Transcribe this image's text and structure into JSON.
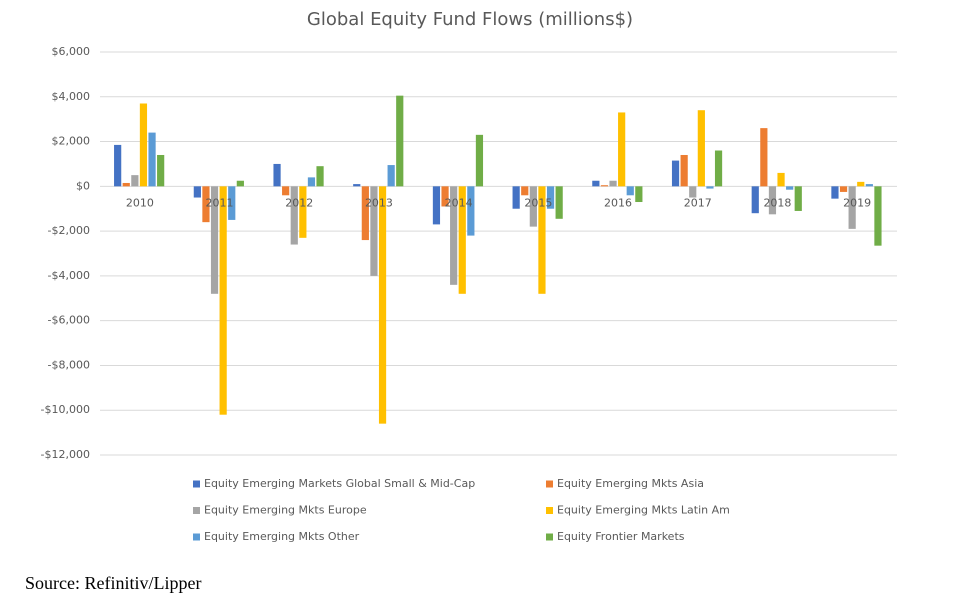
{
  "chart_data": {
    "type": "bar",
    "title": "Global Equity Fund Flows (millions$)",
    "source": "Source: Refinitiv/Lipper",
    "categories": [
      "2010",
      "2011",
      "2012",
      "2013",
      "2014",
      "2015",
      "2016",
      "2017",
      "2018",
      "2019"
    ],
    "series": [
      {
        "name": "Equity Emerging Markets Global Small & Mid-Cap",
        "color": "#4472c4",
        "values": [
          1850,
          -500,
          1000,
          100,
          -1700,
          -1000,
          250,
          1150,
          -1200,
          -550
        ]
      },
      {
        "name": "Equity Emerging Mkts Asia",
        "color": "#ed7d31",
        "values": [
          150,
          -1600,
          -400,
          -2400,
          -900,
          -400,
          50,
          1400,
          2600,
          -250
        ]
      },
      {
        "name": "Equity Emerging Mkts Europe",
        "color": "#a5a5a5",
        "values": [
          500,
          -4800,
          -2600,
          -4000,
          -4400,
          -1800,
          250,
          -500,
          -1250,
          -1900
        ]
      },
      {
        "name": "Equity Emerging Mkts Latin Am",
        "color": "#ffc000",
        "values": [
          3700,
          -10200,
          -2300,
          -10600,
          -4800,
          -4800,
          3300,
          3400,
          600,
          200
        ]
      },
      {
        "name": "Equity Emerging Mkts Other",
        "color": "#5b9bd5",
        "values": [
          2400,
          -1500,
          400,
          950,
          -2200,
          -1000,
          -400,
          -100,
          -150,
          100
        ]
      },
      {
        "name": "Equity Frontier Markets",
        "color": "#70ad47",
        "values": [
          1400,
          250,
          900,
          4050,
          2300,
          -1450,
          -700,
          1600,
          -1100,
          -2650
        ]
      }
    ],
    "ylim": [
      -12000,
      6000
    ],
    "yticks": [
      {
        "value": -12000,
        "label": "-$12,000"
      },
      {
        "value": -10000,
        "label": "-$10,000"
      },
      {
        "value": -8000,
        "label": "-$8,000"
      },
      {
        "value": -6000,
        "label": "-$6,000"
      },
      {
        "value": -4000,
        "label": "-$4,000"
      },
      {
        "value": -2000,
        "label": "-$2,000"
      },
      {
        "value": 0,
        "label": "$0"
      },
      {
        "value": 2000,
        "label": "$2,000"
      },
      {
        "value": 4000,
        "label": "$4,000"
      },
      {
        "value": 6000,
        "label": "$6,000"
      }
    ],
    "grid": true,
    "legend": "bottom"
  }
}
